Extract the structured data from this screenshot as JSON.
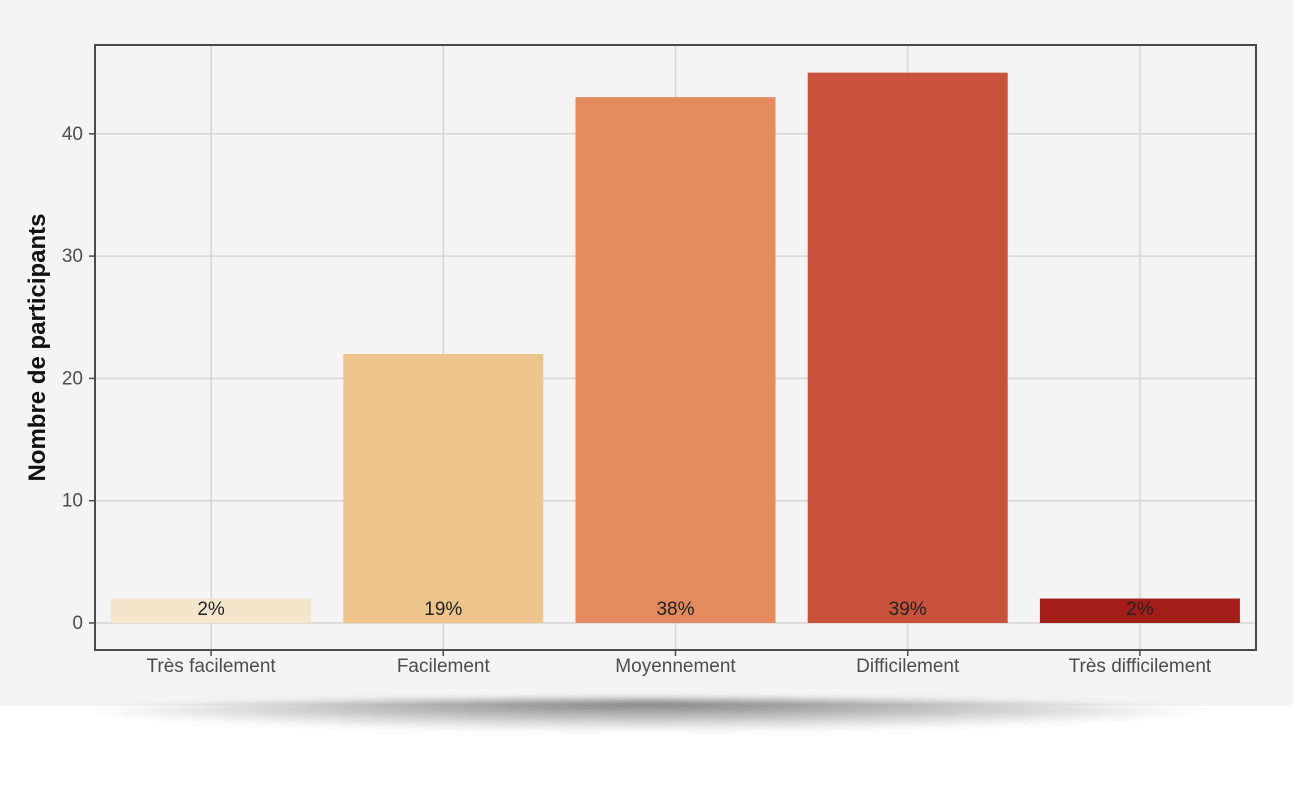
{
  "chart_data": {
    "type": "bar",
    "categories": [
      "Très facilement",
      "Facilement",
      "Moyennement",
      "Difficilement",
      "Très difficilement"
    ],
    "values": [
      2,
      22,
      43,
      45,
      2
    ],
    "labels": [
      "2%",
      "19%",
      "38%",
      "39%",
      "2%"
    ],
    "colors": [
      "#f4e6cd",
      "#ecc48c",
      "#e38b5f",
      "#c9523c",
      "#a31d19"
    ],
    "title": "",
    "xlabel": "",
    "ylabel": "Nombre de participants",
    "ylim": [
      0,
      47
    ],
    "yticks": [
      0,
      10,
      20,
      30,
      40
    ],
    "grid": true,
    "legend": "none"
  }
}
